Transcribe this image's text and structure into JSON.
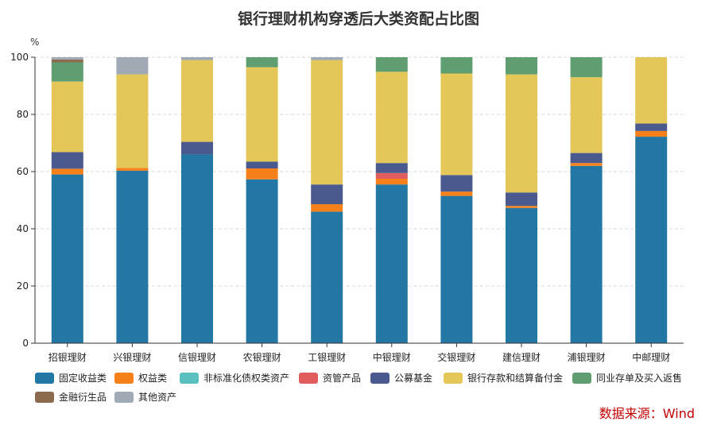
{
  "chart_data": {
    "type": "bar",
    "stacked": true,
    "title": "银行理财机构穿透后大类资配占比图",
    "ylabel": "%",
    "ylim": [
      0,
      100
    ],
    "yticks": [
      0,
      20,
      40,
      60,
      80,
      100
    ],
    "grid": "horizontal dashed",
    "legend_position": "bottom",
    "categories": [
      "招银理财",
      "兴银理财",
      "信银理财",
      "农银理财",
      "工银理财",
      "中银理财",
      "交银理财",
      "建信理财",
      "浦银理财",
      "中邮理财"
    ],
    "series": [
      {
        "name": "固定收益类",
        "color": "#2277a5",
        "values": [
          59,
          60.3,
          66,
          57.3,
          46,
          55.5,
          51.5,
          47.3,
          62,
          72.2
        ]
      },
      {
        "name": "权益类",
        "color": "#f6801a",
        "values": [
          2,
          1,
          0,
          3.8,
          2.6,
          2,
          1.5,
          0.7,
          1,
          2
        ]
      },
      {
        "name": "非标准化债权类资产",
        "color": "#5bc0c0",
        "values": [
          0,
          0,
          0,
          0,
          0,
          0,
          0,
          0,
          0,
          0
        ]
      },
      {
        "name": "资管产品",
        "color": "#e15c5c",
        "values": [
          0,
          0,
          0,
          0,
          0,
          2,
          0,
          0,
          0,
          0
        ]
      },
      {
        "name": "公募基金",
        "color": "#4a5a8f",
        "values": [
          5.8,
          0,
          4.4,
          2.4,
          6.9,
          3.5,
          5.8,
          4.7,
          3.5,
          2.6
        ]
      },
      {
        "name": "银行存款和结算备付金",
        "color": "#e4c758",
        "values": [
          24.7,
          32.7,
          28.6,
          33,
          43.5,
          31.9,
          35.5,
          41.3,
          26.5,
          23.2
        ]
      },
      {
        "name": "同业存单及买入返售",
        "color": "#5f9e70",
        "values": [
          6.7,
          0,
          0,
          3.5,
          0,
          5.1,
          5.7,
          6,
          7,
          0
        ]
      },
      {
        "name": "金融衍生品",
        "color": "#8b6a4e",
        "values": [
          1,
          0,
          0,
          0,
          0,
          0,
          0,
          0,
          0,
          0
        ]
      },
      {
        "name": "其他资产",
        "color": "#a0aab5",
        "values": [
          0.8,
          6,
          1,
          0,
          1,
          0,
          0,
          0,
          0,
          0
        ]
      }
    ]
  },
  "source": "数据来源：Wind"
}
